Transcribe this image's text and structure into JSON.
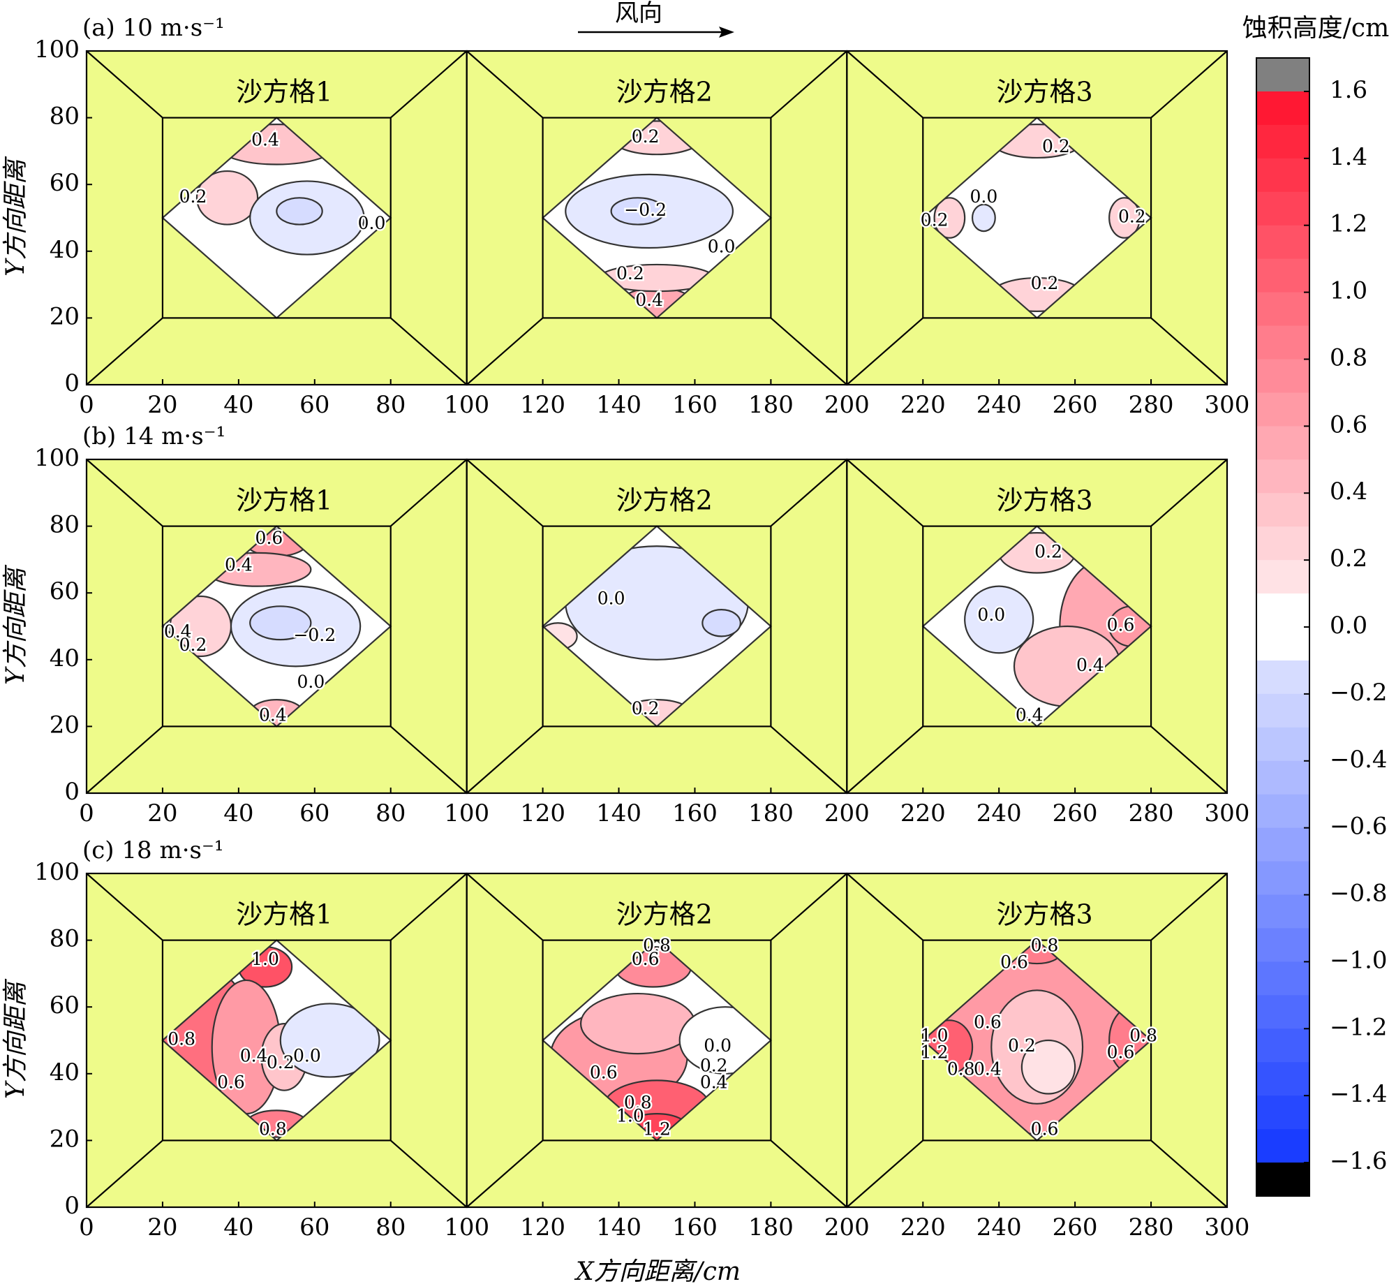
{
  "chart_data": {
    "type": "contour",
    "wind": {
      "label": "风向"
    },
    "xlabel": "X方向距离/cm",
    "ylabel": "Y方向距离",
    "xlim": [
      0,
      300
    ],
    "ylim": [
      0,
      100
    ],
    "xticks": [
      "0",
      "20",
      "40",
      "60",
      "80",
      "100",
      "120",
      "140",
      "160",
      "180",
      "200",
      "220",
      "240",
      "260",
      "280",
      "300"
    ],
    "yticks": [
      "0",
      "20",
      "40",
      "60",
      "80",
      "100"
    ],
    "colorbar": {
      "title": "蚀积高度/cm",
      "range": [
        -1.7,
        1.7
      ],
      "step": 0.1,
      "ticks": [
        "1.6",
        "1.4",
        "1.2",
        "1.0",
        "0.8",
        "0.6",
        "0.4",
        "0.2",
        "0.0",
        "−0.2",
        "−0.4",
        "−0.6",
        "−0.8",
        "−1.0",
        "−1.2",
        "−1.4",
        "−1.6"
      ],
      "over_color": "#808080",
      "under_color": "#000000",
      "neg_color": "#1a3dff",
      "pos_color": "#ff0a26",
      "zero_color": "#ffffff"
    },
    "colors": {
      "grid_fill": "#eefb8a",
      "line": "#000000",
      "contour": "#333333"
    },
    "grid_labels": [
      "沙方格1",
      "沙方格2",
      "沙方格3"
    ],
    "panels": [
      {
        "label": "(a) 10 m·s⁻¹",
        "grids": [
          {
            "cx": 50,
            "cy": 50,
            "blobs": [
              {
                "x": 50,
                "y": 72,
                "rx": 16,
                "ry": 6,
                "v": 0.3
              },
              {
                "x": 37,
                "y": 56,
                "rx": 8,
                "ry": 8,
                "v": 0.15
              },
              {
                "x": 58,
                "y": 50,
                "rx": 15,
                "ry": 11,
                "v": -0.12
              },
              {
                "x": 56,
                "y": 52,
                "rx": 6,
                "ry": 4,
                "v": -0.18
              }
            ],
            "labels": [
              {
                "t": "0.4",
                "x": 47,
                "y": 73
              },
              {
                "t": "0.2",
                "x": 28,
                "y": 56
              },
              {
                "t": "0.0",
                "x": 75,
                "y": 48
              }
            ]
          },
          {
            "cx": 150,
            "cy": 50,
            "blobs": [
              {
                "x": 150,
                "y": 74,
                "rx": 12,
                "ry": 5,
                "v": 0.15
              },
              {
                "x": 150,
                "y": 24,
                "rx": 10,
                "ry": 5,
                "v": 0.45
              },
              {
                "x": 150,
                "y": 32,
                "rx": 15,
                "ry": 4,
                "v": 0.15
              },
              {
                "x": 148,
                "y": 52,
                "rx": 22,
                "ry": 11,
                "v": -0.12
              },
              {
                "x": 145,
                "y": 52,
                "rx": 7,
                "ry": 4,
                "v": -0.2
              }
            ],
            "labels": [
              {
                "t": "0.2",
                "x": 147,
                "y": 74
              },
              {
                "t": "−0.2",
                "x": 147,
                "y": 52
              },
              {
                "t": "0.0",
                "x": 167,
                "y": 41
              },
              {
                "t": "0.2",
                "x": 143,
                "y": 33
              },
              {
                "t": "0.4",
                "x": 148,
                "y": 25
              }
            ]
          },
          {
            "cx": 250,
            "cy": 50,
            "blobs": [
              {
                "x": 250,
                "y": 73,
                "rx": 12,
                "ry": 5,
                "v": 0.2
              },
              {
                "x": 250,
                "y": 27,
                "rx": 12,
                "ry": 5,
                "v": 0.2
              },
              {
                "x": 227,
                "y": 50,
                "rx": 4,
                "ry": 6,
                "v": 0.15
              },
              {
                "x": 273,
                "y": 50,
                "rx": 4,
                "ry": 6,
                "v": 0.15
              },
              {
                "x": 236,
                "y": 50,
                "rx": 3,
                "ry": 4,
                "v": -0.1
              }
            ],
            "labels": [
              {
                "t": "0.2",
                "x": 255,
                "y": 71
              },
              {
                "t": "0.0",
                "x": 236,
                "y": 56
              },
              {
                "t": "0.2",
                "x": 223,
                "y": 49
              },
              {
                "t": "0.2",
                "x": 275,
                "y": 50
              },
              {
                "t": "0.2",
                "x": 252,
                "y": 30
              }
            ]
          }
        ]
      },
      {
        "label": "(b) 14 m·s⁻¹",
        "grids": [
          {
            "cx": 50,
            "cy": 50,
            "blobs": [
              {
                "x": 50,
                "y": 75,
                "rx": 8,
                "ry": 4,
                "v": 0.6
              },
              {
                "x": 45,
                "y": 67,
                "rx": 14,
                "ry": 5,
                "v": 0.4
              },
              {
                "x": 27,
                "y": 50,
                "rx": 4,
                "ry": 6,
                "v": 0.4
              },
              {
                "x": 30,
                "y": 50,
                "rx": 8,
                "ry": 9,
                "v": 0.2
              },
              {
                "x": 50,
                "y": 24,
                "rx": 7,
                "ry": 4,
                "v": 0.4
              },
              {
                "x": 55,
                "y": 50,
                "rx": 17,
                "ry": 12,
                "v": -0.12
              },
              {
                "x": 51,
                "y": 51,
                "rx": 8,
                "ry": 5,
                "v": -0.22
              }
            ],
            "labels": [
              {
                "t": "0.6",
                "x": 48,
                "y": 76
              },
              {
                "t": "0.4",
                "x": 40,
                "y": 68
              },
              {
                "t": "0.4",
                "x": 24,
                "y": 48
              },
              {
                "t": "0.2",
                "x": 28,
                "y": 44
              },
              {
                "t": "−0.2",
                "x": 60,
                "y": 47
              },
              {
                "t": "0.0",
                "x": 59,
                "y": 33
              },
              {
                "t": "0.4",
                "x": 49,
                "y": 23
              }
            ]
          },
          {
            "cx": 150,
            "cy": 50,
            "blobs": [
              {
                "x": 150,
                "y": 57,
                "rx": 24,
                "ry": 17,
                "v": -0.1
              },
              {
                "x": 167,
                "y": 51,
                "rx": 5,
                "ry": 4,
                "v": -0.15
              },
              {
                "x": 150,
                "y": 24,
                "rx": 9,
                "ry": 4,
                "v": 0.2
              },
              {
                "x": 124,
                "y": 47,
                "rx": 5,
                "ry": 4,
                "v": 0.1
              }
            ],
            "labels": [
              {
                "t": "0.0",
                "x": 138,
                "y": 58
              },
              {
                "t": "0.2",
                "x": 147,
                "y": 25
              }
            ]
          },
          {
            "cx": 250,
            "cy": 50,
            "blobs": [
              {
                "x": 268,
                "y": 50,
                "rx": 12,
                "ry": 20,
                "v": 0.45
              },
              {
                "x": 275,
                "y": 50,
                "rx": 6,
                "ry": 6,
                "v": 0.6
              },
              {
                "x": 258,
                "y": 38,
                "rx": 14,
                "ry": 12,
                "v": 0.3
              },
              {
                "x": 250,
                "y": 72,
                "rx": 10,
                "ry": 6,
                "v": 0.2
              },
              {
                "x": 240,
                "y": 52,
                "rx": 9,
                "ry": 10,
                "v": -0.1
              }
            ],
            "labels": [
              {
                "t": "0.2",
                "x": 253,
                "y": 72
              },
              {
                "t": "0.0",
                "x": 238,
                "y": 53
              },
              {
                "t": "0.6",
                "x": 272,
                "y": 50
              },
              {
                "t": "0.4",
                "x": 264,
                "y": 38
              },
              {
                "t": "0.4",
                "x": 248,
                "y": 23
              }
            ]
          }
        ]
      },
      {
        "label": "(c) 18 m·s⁻¹",
        "grids": [
          {
            "cx": 50,
            "cy": 50,
            "blobs": [
              {
                "x": 30,
                "y": 50,
                "rx": 14,
                "ry": 22,
                "v": 0.9
              },
              {
                "x": 47,
                "y": 72,
                "rx": 7,
                "ry": 6,
                "v": 1.05
              },
              {
                "x": 42,
                "y": 48,
                "rx": 9,
                "ry": 20,
                "v": 0.55
              },
              {
                "x": 50,
                "y": 25,
                "rx": 8,
                "ry": 4,
                "v": 0.8
              },
              {
                "x": 52,
                "y": 45,
                "rx": 6,
                "ry": 10,
                "v": 0.3
              },
              {
                "x": 64,
                "y": 50,
                "rx": 13,
                "ry": 11,
                "v": -0.1
              }
            ],
            "labels": [
              {
                "t": "1.0",
                "x": 47,
                "y": 74
              },
              {
                "t": "0.8",
                "x": 25,
                "y": 50
              },
              {
                "t": "0.4",
                "x": 44,
                "y": 45
              },
              {
                "t": "0.2",
                "x": 51,
                "y": 43
              },
              {
                "t": "0.0",
                "x": 58,
                "y": 45
              },
              {
                "t": "0.6",
                "x": 38,
                "y": 37
              },
              {
                "t": "0.8",
                "x": 49,
                "y": 23
              }
            ]
          },
          {
            "cx": 150,
            "cy": 50,
            "blobs": [
              {
                "x": 140,
                "y": 45,
                "rx": 18,
                "ry": 14,
                "v": 0.6
              },
              {
                "x": 150,
                "y": 30,
                "rx": 14,
                "ry": 8,
                "v": 0.95
              },
              {
                "x": 150,
                "y": 24,
                "rx": 8,
                "ry": 4,
                "v": 1.2
              },
              {
                "x": 149,
                "y": 72,
                "rx": 10,
                "ry": 6,
                "v": 0.7
              },
              {
                "x": 145,
                "y": 55,
                "rx": 15,
                "ry": 9,
                "v": 0.35
              },
              {
                "x": 168,
                "y": 50,
                "rx": 12,
                "ry": 10,
                "v": 0.05
              }
            ],
            "labels": [
              {
                "t": "0.8",
                "x": 150,
                "y": 78
              },
              {
                "t": "0.6",
                "x": 147,
                "y": 74
              },
              {
                "t": "0.0",
                "x": 166,
                "y": 48
              },
              {
                "t": "0.2",
                "x": 165,
                "y": 42
              },
              {
                "t": "0.6",
                "x": 136,
                "y": 40
              },
              {
                "t": "0.4",
                "x": 165,
                "y": 37
              },
              {
                "t": "0.8",
                "x": 145,
                "y": 31
              },
              {
                "t": "1.0",
                "x": 143,
                "y": 27
              },
              {
                "t": "1.2",
                "x": 150,
                "y": 23
              }
            ]
          },
          {
            "cx": 250,
            "cy": 50,
            "blobs": [
              {
                "x": 250,
                "y": 50,
                "rx": 28,
                "ry": 28,
                "v": 0.55
              },
              {
                "x": 227,
                "y": 48,
                "rx": 6,
                "ry": 8,
                "v": 1.0
              },
              {
                "x": 275,
                "y": 50,
                "rx": 6,
                "ry": 10,
                "v": 0.75
              },
              {
                "x": 250,
                "y": 76,
                "rx": 6,
                "ry": 3,
                "v": 0.8
              },
              {
                "x": 250,
                "y": 48,
                "rx": 12,
                "ry": 17,
                "v": 0.25
              },
              {
                "x": 253,
                "y": 42,
                "rx": 7,
                "ry": 8,
                "v": 0.12
              }
            ],
            "labels": [
              {
                "t": "0.8",
                "x": 252,
                "y": 78
              },
              {
                "t": "0.6",
                "x": 244,
                "y": 73
              },
              {
                "t": "1.0",
                "x": 223,
                "y": 51
              },
              {
                "t": "1.2",
                "x": 223,
                "y": 46
              },
              {
                "t": "0.6",
                "x": 237,
                "y": 55
              },
              {
                "t": "0.8",
                "x": 230,
                "y": 41
              },
              {
                "t": "0.4",
                "x": 237,
                "y": 41
              },
              {
                "t": "0.2",
                "x": 246,
                "y": 48
              },
              {
                "t": "0.8",
                "x": 278,
                "y": 51
              },
              {
                "t": "0.6",
                "x": 272,
                "y": 46
              },
              {
                "t": "0.6",
                "x": 252,
                "y": 23
              }
            ]
          }
        ]
      }
    ]
  }
}
